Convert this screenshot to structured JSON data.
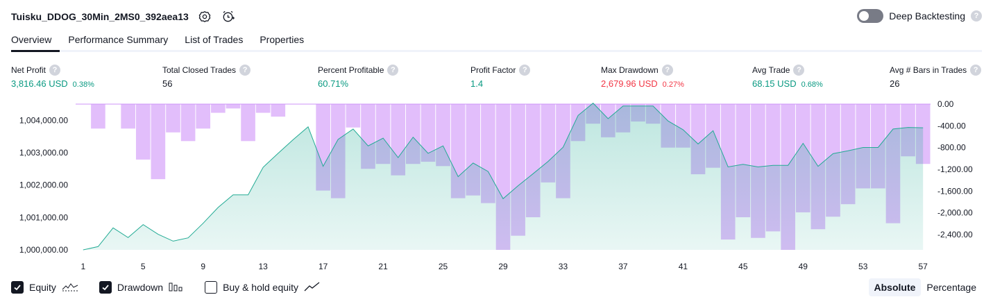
{
  "header": {
    "strategy_name": "Tuisku_DDOG_30Min_2MS0_392aea13",
    "deep_backtesting_label": "Deep Backtesting",
    "help_glyph": "?"
  },
  "tabs": [
    {
      "label": "Overview",
      "active": true
    },
    {
      "label": "Performance Summary",
      "active": false
    },
    {
      "label": "List of Trades",
      "active": false
    },
    {
      "label": "Properties",
      "active": false
    }
  ],
  "metrics": [
    {
      "label": "Net Profit",
      "value": "3,816.46 USD",
      "pct": "0.38%",
      "tone": "pos"
    },
    {
      "label": "Total Closed Trades",
      "value": "56",
      "pct": "",
      "tone": "plain"
    },
    {
      "label": "Percent Profitable",
      "value": "60.71%",
      "pct": "",
      "tone": "pos"
    },
    {
      "label": "Profit Factor",
      "value": "1.4",
      "pct": "",
      "tone": "pos"
    },
    {
      "label": "Max Drawdown",
      "value": "2,679.96 USD",
      "pct": "0.27%",
      "tone": "neg"
    },
    {
      "label": "Avg Trade",
      "value": "68.15 USD",
      "pct": "0.68%",
      "tone": "pos"
    },
    {
      "label": "Avg # Bars in Trades",
      "value": "26",
      "pct": "",
      "tone": "plain"
    }
  ],
  "legend": {
    "equity": "Equity",
    "drawdown": "Drawdown",
    "buy_hold": "Buy & hold equity",
    "equity_checked": true,
    "drawdown_checked": true,
    "buy_hold_checked": false
  },
  "view_toggle": {
    "absolute": "Absolute",
    "percentage": "Percentage",
    "active": "absolute"
  },
  "colors": {
    "equity_line": "#22ab94",
    "equity_fill": "#d7f0ea",
    "drawdown_bar": "#ce93f9",
    "positive": "#089981",
    "negative": "#f23645"
  },
  "chart_data": {
    "type": "area",
    "x_ticks": [
      "1",
      "5",
      "9",
      "13",
      "17",
      "21",
      "25",
      "29",
      "33",
      "37",
      "41",
      "45",
      "49",
      "53",
      "57"
    ],
    "y_left_ticks": [
      "1,000,000.00",
      "1,001,000.00",
      "1,002,000.00",
      "1,003,000.00",
      "1,004,000.00"
    ],
    "y_right_ticks": [
      "0.00",
      "-400.00",
      "-800.00",
      "-1,200.00",
      "-1,600.00",
      "-2,000.00",
      "-2,400.00"
    ],
    "ylim_left": [
      1000000,
      1004500
    ],
    "ylim_right": [
      -2680,
      0
    ],
    "series": [
      {
        "name": "Equity",
        "x": [
          1,
          2,
          3,
          4,
          5,
          6,
          7,
          8,
          9,
          10,
          11,
          12,
          13,
          14,
          15,
          16,
          17,
          18,
          19,
          20,
          21,
          22,
          23,
          24,
          25,
          26,
          27,
          28,
          29,
          30,
          31,
          32,
          33,
          34,
          35,
          36,
          37,
          38,
          39,
          40,
          41,
          42,
          43,
          44,
          45,
          46,
          47,
          48,
          49,
          50,
          51,
          52,
          53,
          54,
          55,
          56,
          57
        ],
        "values": [
          1000000,
          1000100,
          1000680,
          1000380,
          1000780,
          1000480,
          1000270,
          1000370,
          1000820,
          1001310,
          1001700,
          1001700,
          1002550,
          1002980,
          1003400,
          1003800,
          1002580,
          1003410,
          1003730,
          1003210,
          1003450,
          1002850,
          1003480,
          1002980,
          1003210,
          1002260,
          1002680,
          1002420,
          1001580,
          1001980,
          1002350,
          1002730,
          1003170,
          1004150,
          1004530,
          1004050,
          1004440,
          1004440,
          1004440,
          1003980,
          1003710,
          1003270,
          1003680,
          1002560,
          1002640,
          1002560,
          1002610,
          1002610,
          1003290,
          1002580,
          1002970,
          1003060,
          1003160,
          1003160,
          1003730,
          1003780,
          1003770
        ]
      },
      {
        "name": "Drawdown",
        "x": [
          1,
          2,
          3,
          4,
          5,
          6,
          7,
          8,
          9,
          10,
          11,
          12,
          13,
          14,
          15,
          16,
          17,
          18,
          19,
          20,
          21,
          22,
          23,
          24,
          25,
          26,
          27,
          28,
          29,
          30,
          31,
          32,
          33,
          34,
          35,
          36,
          37,
          38,
          39,
          40,
          41,
          42,
          43,
          44,
          45,
          46,
          47,
          48,
          49,
          50,
          51,
          52,
          53,
          54,
          55,
          56,
          57
        ],
        "values": [
          0,
          -450,
          0,
          -450,
          -1020,
          -1380,
          -520,
          -680,
          -450,
          -160,
          -80,
          -680,
          -160,
          -230,
          0,
          0,
          -1590,
          -1730,
          -430,
          -1190,
          -1100,
          -1310,
          -1100,
          -1060,
          -1140,
          -1730,
          -1680,
          -1820,
          -2680,
          -2420,
          -2080,
          -1440,
          -1730,
          -680,
          -360,
          -610,
          -520,
          -320,
          -360,
          -800,
          -800,
          -1290,
          -1170,
          -2490,
          -2080,
          -2460,
          -2340,
          -2680,
          -1990,
          -2300,
          -2070,
          -1840,
          -1550,
          -1550,
          -2190,
          -960,
          -1100
        ]
      }
    ],
    "grid": false,
    "legend": "bottom-left"
  }
}
